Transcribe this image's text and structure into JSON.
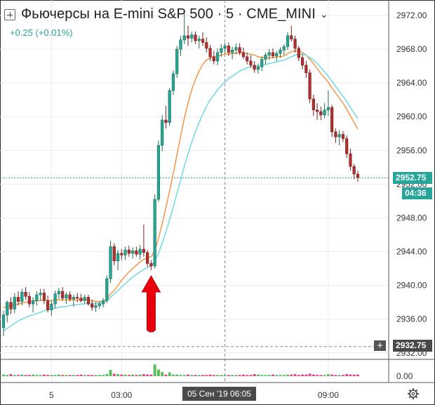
{
  "header": {
    "title": "Фьючерсы на E-mini S&P 500 · 5 · CME_MINI",
    "change": "+0.25 (+0.01%)"
  },
  "price_axis": {
    "ticks": [
      "2972.00",
      "2968.00",
      "2964.00",
      "2960.00",
      "2956.00",
      "2952.00",
      "2948.00",
      "2944.00",
      "2940.00",
      "2936.00",
      "2932.00"
    ],
    "last_price": "2952.75",
    "countdown": "04:36"
  },
  "volume_axis": {
    "tick": "0.00"
  },
  "time_axis": {
    "labels": [
      "5",
      "03:00",
      "09:00"
    ]
  },
  "crosshair": {
    "price": "2932.75",
    "time": "05 Сен '19   06:05"
  },
  "colors": {
    "up": "#26a69a",
    "down": "#b0302f",
    "wick_up": "#1e6e4c",
    "wick_down": "#7a1f1f",
    "ma_fast": "#f59648",
    "ma_slow": "#6fd9e3",
    "arrow": "#e8000d",
    "volume_up": "#5dbf5b",
    "volume_down": "#e04a8a"
  },
  "chart_data": {
    "type": "candlestick",
    "symbol": "Фьючерсы на E-mini S&P 500",
    "interval": "5",
    "exchange": "CME_MINI",
    "ylim": [
      2931.5,
      2973
    ],
    "x_labels": [
      "5",
      "03:00",
      "09:00"
    ],
    "candles": [
      [
        2935,
        2937,
        2934,
        2936.5
      ],
      [
        2936.5,
        2938.2,
        2935.6,
        2938
      ],
      [
        2938,
        2938.6,
        2936.6,
        2937.2
      ],
      [
        2937.2,
        2939.1,
        2936.7,
        2938.6
      ],
      [
        2938.6,
        2939.3,
        2937.6,
        2938.1
      ],
      [
        2938.1,
        2939.6,
        2937.6,
        2939.2
      ],
      [
        2939.2,
        2939.8,
        2938.3,
        2938.7
      ],
      [
        2938.7,
        2939.2,
        2937.4,
        2937.8
      ],
      [
        2937.8,
        2938.6,
        2936.8,
        2938.2
      ],
      [
        2938.2,
        2939.3,
        2937.6,
        2938.9
      ],
      [
        2938.9,
        2939.6,
        2938.2,
        2939.1
      ],
      [
        2939.1,
        2939.6,
        2937.8,
        2938.2
      ],
      [
        2938.2,
        2938.8,
        2936.8,
        2937.1
      ],
      [
        2937.1,
        2938.2,
        2936.4,
        2937.8
      ],
      [
        2937.8,
        2939.4,
        2937.3,
        2939
      ],
      [
        2939,
        2939.7,
        2938.4,
        2939.3
      ],
      [
        2939.3,
        2939.8,
        2938.2,
        2938.5
      ],
      [
        2938.5,
        2939.2,
        2937.8,
        2938.9
      ],
      [
        2938.9,
        2939.3,
        2938.1,
        2938.4
      ],
      [
        2938.4,
        2938.9,
        2937.5,
        2938.6
      ],
      [
        2938.6,
        2939.1,
        2938,
        2938.5
      ],
      [
        2938.5,
        2939,
        2938,
        2938.2
      ],
      [
        2938.2,
        2938.9,
        2937.8,
        2938.6
      ],
      [
        2938.6,
        2938.9,
        2937.6,
        2937.8
      ],
      [
        2937.8,
        2938.3,
        2937,
        2937.4
      ],
      [
        2937.4,
        2938,
        2936.9,
        2937.6
      ],
      [
        2937.6,
        2938.1,
        2937.2,
        2937.8
      ],
      [
        2937.8,
        2938.5,
        2937.4,
        2938.2
      ],
      [
        2938.2,
        2941.2,
        2937.9,
        2940.8
      ],
      [
        2940.8,
        2945.3,
        2940.3,
        2944.6
      ],
      [
        2944.6,
        2945,
        2942.4,
        2942.9
      ],
      [
        2942.9,
        2944.2,
        2941.8,
        2943.8
      ],
      [
        2943.8,
        2944.3,
        2943,
        2943.6
      ],
      [
        2943.6,
        2944.6,
        2943,
        2944.2
      ],
      [
        2944.2,
        2944.7,
        2943.4,
        2943.8
      ],
      [
        2943.8,
        2944.5,
        2943.2,
        2944.1
      ],
      [
        2944.1,
        2944.6,
        2943.4,
        2943.7
      ],
      [
        2943.7,
        2944.8,
        2943.1,
        2944.3
      ],
      [
        2944.3,
        2947.2,
        2943.4,
        2943.9
      ],
      [
        2943.9,
        2944.2,
        2942.2,
        2942.6
      ],
      [
        2942.6,
        2943,
        2941.8,
        2942.3
      ],
      [
        2942.3,
        2950.8,
        2942,
        2950.2
      ],
      [
        2950.2,
        2957.2,
        2949.9,
        2956.6
      ],
      [
        2956.6,
        2960.2,
        2955.9,
        2959.6
      ],
      [
        2959.6,
        2961.3,
        2958.6,
        2959.3
      ],
      [
        2959.3,
        2963.4,
        2958.9,
        2963.1
      ],
      [
        2963.1,
        2965.5,
        2962.6,
        2965.1
      ],
      [
        2965.1,
        2968.4,
        2964.6,
        2968
      ],
      [
        2968,
        2969.6,
        2967.2,
        2969.1
      ],
      [
        2969.1,
        2972.3,
        2968.6,
        2969.6
      ],
      [
        2969.6,
        2970.8,
        2968.4,
        2969.3
      ],
      [
        2969.3,
        2970.1,
        2968.8,
        2969.7
      ],
      [
        2969.7,
        2970.1,
        2968.6,
        2969
      ],
      [
        2969,
        2969.6,
        2968.1,
        2969.2
      ],
      [
        2969.2,
        2970,
        2968.4,
        2968.8
      ],
      [
        2968.8,
        2969.4,
        2967.6,
        2968.1
      ],
      [
        2968.1,
        2968.5,
        2966.6,
        2967.1
      ],
      [
        2967.1,
        2967.8,
        2966.2,
        2966.6
      ],
      [
        2966.6,
        2968.1,
        2966.1,
        2967.6
      ],
      [
        2967.6,
        2968.6,
        2967.1,
        2968.1
      ],
      [
        2968.1,
        2968.8,
        2967.4,
        2968.4
      ],
      [
        2968.4,
        2968.8,
        2967.2,
        2967.6
      ],
      [
        2967.6,
        2968.3,
        2966.8,
        2967.9
      ],
      [
        2967.9,
        2968.7,
        2967.4,
        2968.2
      ],
      [
        2968.2,
        2968.7,
        2967.3,
        2967.6
      ],
      [
        2967.6,
        2968.2,
        2966.8,
        2967.1
      ],
      [
        2967.1,
        2967.6,
        2966.2,
        2966.6
      ],
      [
        2966.6,
        2967.3,
        2965.8,
        2966.1
      ],
      [
        2966.1,
        2966.6,
        2965.2,
        2965.6
      ],
      [
        2965.6,
        2966.3,
        2965.1,
        2965.9
      ],
      [
        2965.9,
        2967.2,
        2965.4,
        2966.8
      ],
      [
        2966.8,
        2967.6,
        2966.2,
        2967.3
      ],
      [
        2967.3,
        2968,
        2966.7,
        2967.6
      ],
      [
        2967.6,
        2968.1,
        2966.9,
        2967.2
      ],
      [
        2967.2,
        2967.8,
        2966.6,
        2967.5
      ],
      [
        2967.5,
        2968.2,
        2967,
        2967.9
      ],
      [
        2967.9,
        2968.6,
        2967.3,
        2968.3
      ],
      [
        2968.3,
        2970,
        2967.9,
        2969.6
      ],
      [
        2969.6,
        2970.8,
        2968.9,
        2969.2
      ],
      [
        2969.2,
        2969.6,
        2967.6,
        2968.1
      ],
      [
        2968.1,
        2968.4,
        2966.6,
        2967
      ],
      [
        2967,
        2967.4,
        2965.6,
        2966.1
      ],
      [
        2966.1,
        2966.6,
        2964.6,
        2965.2
      ],
      [
        2965.2,
        2965.6,
        2961.6,
        2962.1
      ],
      [
        2962.1,
        2962.6,
        2960.1,
        2960.8
      ],
      [
        2960.8,
        2961.6,
        2959.6,
        2960.6
      ],
      [
        2960.6,
        2961.2,
        2959.6,
        2960.2
      ],
      [
        2960.2,
        2961.6,
        2959.8,
        2960.8
      ],
      [
        2960.8,
        2963.1,
        2960.1,
        2961.1
      ],
      [
        2961.1,
        2961.4,
        2957.6,
        2958.2
      ],
      [
        2958.2,
        2958.6,
        2956.9,
        2957.6
      ],
      [
        2957.6,
        2958.4,
        2956.6,
        2957.9
      ],
      [
        2957.9,
        2958.3,
        2957,
        2957.4
      ],
      [
        2957.4,
        2957.8,
        2955.1,
        2955.6
      ],
      [
        2955.6,
        2956.2,
        2953.6,
        2954.1
      ],
      [
        2954.1,
        2954.4,
        2952.6,
        2953.2
      ],
      [
        2953.2,
        2953.6,
        2952.3,
        2952.8
      ]
    ],
    "series": [
      {
        "name": "",
        "kind": "ma-fast",
        "values": [
          2937.4,
          2937.5,
          2937.6,
          2937.7,
          2937.8,
          2937.9,
          2938,
          2938.1,
          2938.1,
          2938.2,
          2938.2,
          2938.3,
          2938.2,
          2938.2,
          2938.3,
          2938.3,
          2938.3,
          2938.3,
          2938.3,
          2938.3,
          2938.3,
          2938.3,
          2938.3,
          2938.3,
          2938.2,
          2938.1,
          2938.1,
          2938.1,
          2938.4,
          2939,
          2939.4,
          2940,
          2940.6,
          2941.1,
          2941.6,
          2942,
          2942.4,
          2942.8,
          2943.1,
          2943.3,
          2943.4,
          2944.2,
          2945.6,
          2947.3,
          2949.2,
          2951.2,
          2953.3,
          2955.5,
          2957.7,
          2959.8,
          2961.6,
          2963.2,
          2964.4,
          2965.4,
          2966.2,
          2966.7,
          2967,
          2967.1,
          2967.2,
          2967.3,
          2967.4,
          2967.4,
          2967.5,
          2967.5,
          2967.6,
          2967.6,
          2967.5,
          2967.4,
          2967.3,
          2967.1,
          2967,
          2967,
          2967,
          2967,
          2967.1,
          2967.1,
          2967.2,
          2967.5,
          2967.7,
          2967.8,
          2967.8,
          2967.6,
          2967.3,
          2966.8,
          2966.3,
          2965.7,
          2965.1,
          2964.6,
          2964.1,
          2963.4,
          2962.8,
          2962.2,
          2961.6,
          2960.9,
          2960.1,
          2959.3,
          2958.5
        ]
      },
      {
        "name": "",
        "kind": "ma-slow",
        "values": [
          2934.6,
          2934.9,
          2935.2,
          2935.5,
          2935.8,
          2936,
          2936.2,
          2936.4,
          2936.5,
          2936.7,
          2936.8,
          2937,
          2937.1,
          2937.2,
          2937.3,
          2937.4,
          2937.5,
          2937.5,
          2937.6,
          2937.7,
          2937.7,
          2937.8,
          2937.8,
          2937.9,
          2937.9,
          2937.9,
          2937.9,
          2938,
          2938.2,
          2938.6,
          2939,
          2939.4,
          2939.8,
          2940.2,
          2940.6,
          2941,
          2941.3,
          2941.6,
          2941.9,
          2942.1,
          2942.3,
          2942.9,
          2943.8,
          2945,
          2946.3,
          2947.8,
          2949.3,
          2950.9,
          2952.5,
          2954.1,
          2955.6,
          2957,
          2958.2,
          2959.3,
          2960.3,
          2961.2,
          2962,
          2962.6,
          2963.2,
          2963.7,
          2964.1,
          2964.5,
          2964.8,
          2965.1,
          2965.4,
          2965.6,
          2965.8,
          2965.9,
          2966,
          2966,
          2966.1,
          2966.2,
          2966.3,
          2966.4,
          2966.5,
          2966.6,
          2966.7,
          2966.9,
          2967.1,
          2967.3,
          2967.4,
          2967.4,
          2967.3,
          2967,
          2966.7,
          2966.3,
          2965.8,
          2965.3,
          2964.8,
          2964.2,
          2963.6,
          2963,
          2962.4,
          2961.8,
          2961.1,
          2960.4,
          2959.8
        ]
      }
    ],
    "volume": [
      0.4,
      0.3,
      0.5,
      0.3,
      0.3,
      0.4,
      0.3,
      0.3,
      0.4,
      0.3,
      0.3,
      0.4,
      0.3,
      0.3,
      0.3,
      0.4,
      0.3,
      0.3,
      0.3,
      0.3,
      0.3,
      0.4,
      0.3,
      0.3,
      0.3,
      0.3,
      0.3,
      0.3,
      0.5,
      1.5,
      0.6,
      0.5,
      0.4,
      0.4,
      0.3,
      0.4,
      0.3,
      0.4,
      0.5,
      0.4,
      0.4,
      2.8,
      1.6,
      1.0,
      0.4,
      0.9,
      0.4,
      0.4,
      0.3,
      0.3,
      0.4,
      0.3,
      0.3,
      0.3,
      0.3,
      0.3,
      0.4,
      0.3,
      0.3,
      0.3,
      0.3,
      0.3,
      0.3,
      0.3,
      0.3,
      0.4,
      0.3,
      0.3,
      0.5,
      0.4,
      0.3,
      0.3,
      0.3,
      0.4,
      0.3,
      0.3,
      0.3,
      0.4,
      0.4,
      0.5,
      0.3,
      0.4,
      0.4,
      0.6,
      0.4,
      0.3,
      0.3,
      0.3,
      0.5,
      0.4,
      0.3,
      0.3,
      0.3,
      0.5,
      0.4,
      0.4,
      0.4
    ],
    "annotation": {
      "type": "arrow",
      "at_index": 40,
      "direction": "up"
    }
  }
}
